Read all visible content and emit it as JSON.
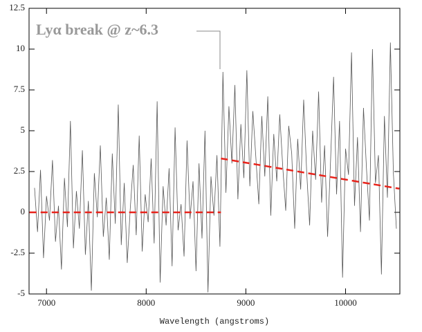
{
  "chart_data": {
    "type": "line",
    "xlabel": "Wavelength (angstroms)",
    "annotation": "Lyα break @ z~6.3",
    "xlim": [
      6825,
      10545
    ],
    "xticks": [
      7000,
      8000,
      9000,
      10000
    ],
    "ylim": [
      -5,
      12.5
    ],
    "yticks": [
      -5,
      -2.5,
      0,
      2.5,
      5,
      7.5,
      10,
      12.5
    ],
    "x": [
      6880,
      6910,
      6940,
      6970,
      7000,
      7030,
      7060,
      7090,
      7120,
      7150,
      7180,
      7210,
      7240,
      7270,
      7300,
      7330,
      7360,
      7390,
      7420,
      7450,
      7480,
      7510,
      7540,
      7570,
      7600,
      7630,
      7660,
      7690,
      7720,
      7750,
      7780,
      7810,
      7840,
      7870,
      7900,
      7930,
      7960,
      7990,
      8020,
      8050,
      8080,
      8110,
      8140,
      8170,
      8200,
      8230,
      8260,
      8290,
      8320,
      8350,
      8380,
      8410,
      8440,
      8470,
      8500,
      8530,
      8560,
      8590,
      8620,
      8650,
      8680,
      8710,
      8740,
      8770,
      8800,
      8830,
      8860,
      8890,
      8920,
      8950,
      8980,
      9010,
      9040,
      9070,
      9100,
      9130,
      9160,
      9190,
      9220,
      9250,
      9280,
      9310,
      9340,
      9370,
      9400,
      9430,
      9460,
      9490,
      9520,
      9550,
      9580,
      9610,
      9640,
      9670,
      9700,
      9730,
      9760,
      9790,
      9820,
      9850,
      9880,
      9910,
      9940,
      9970,
      10000,
      10030,
      10060,
      10090,
      10120,
      10150,
      10180,
      10210,
      10240,
      10270,
      10300,
      10330,
      10360,
      10390,
      10420,
      10450,
      10480,
      10510
    ],
    "series": [
      {
        "color": "#555555",
        "values": [
          1.5,
          -1.2,
          2.6,
          -2.8,
          1.0,
          -0.5,
          3.2,
          -1.8,
          0.4,
          -3.5,
          2.1,
          -0.9,
          5.6,
          -2.2,
          1.3,
          -1.0,
          3.8,
          -2.6,
          0.7,
          -4.8,
          2.4,
          -0.3,
          4.1,
          -1.5,
          0.9,
          -2.9,
          3.6,
          -0.7,
          6.6,
          -2.0,
          1.8,
          -3.1,
          0.2,
          2.9,
          -1.4,
          4.7,
          -2.4,
          1.1,
          -0.6,
          3.3,
          -1.9,
          6.8,
          -4.3,
          1.6,
          -0.8,
          2.7,
          -3.3,
          5.2,
          -1.1,
          0.5,
          -2.7,
          4.4,
          -0.4,
          1.9,
          -3.6,
          3.0,
          -1.6,
          5.0,
          -4.9,
          2.2,
          -0.2,
          3.5,
          -2.1,
          8.6,
          1.2,
          6.5,
          3.0,
          7.8,
          0.8,
          5.4,
          2.1,
          8.7,
          1.6,
          6.2,
          3.4,
          0.5,
          5.9,
          2.2,
          7.1,
          -0.2,
          4.8,
          1.9,
          6.0,
          2.8,
          0.1,
          5.3,
          3.6,
          -1.0,
          4.5,
          1.4,
          6.9,
          2.5,
          -0.8,
          5.0,
          2.0,
          7.4,
          0.6,
          4.1,
          -1.5,
          3.2,
          8.3,
          1.1,
          5.6,
          -4.0,
          3.9,
          2.3,
          9.8,
          0.4,
          4.6,
          -1.2,
          6.4,
          2.7,
          -0.5,
          10.0,
          1.8,
          3.5,
          -3.8,
          5.9,
          0.9,
          10.4,
          2.4,
          -1.0
        ]
      }
    ],
    "fits": [
      {
        "color": "#e8231b",
        "x": [
          6830,
          8750
        ],
        "values": [
          0,
          0
        ]
      },
      {
        "color": "#e8231b",
        "x": [
          8750,
          10540
        ],
        "values": [
          3.3,
          1.45
        ]
      }
    ]
  }
}
